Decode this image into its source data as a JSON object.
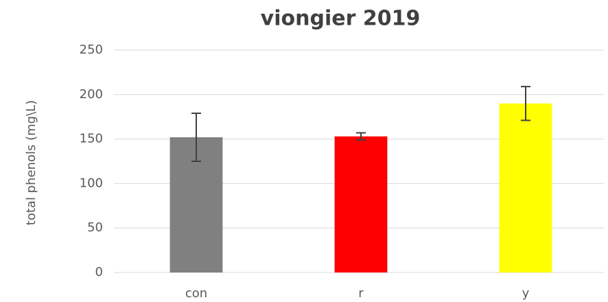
{
  "chart_data": {
    "type": "bar",
    "title": "viongier 2019",
    "y_label": "total phenols (mg\\L)",
    "categories": [
      "con",
      "r",
      "y"
    ],
    "values": [
      152,
      153,
      190
    ],
    "errors": [
      27,
      4,
      19
    ],
    "colors": [
      "#808080",
      "#ff0000",
      "#ffff00"
    ],
    "ylim": [
      0,
      250
    ],
    "yticks": [
      0,
      50,
      100,
      150,
      200,
      250
    ],
    "grid": true
  }
}
